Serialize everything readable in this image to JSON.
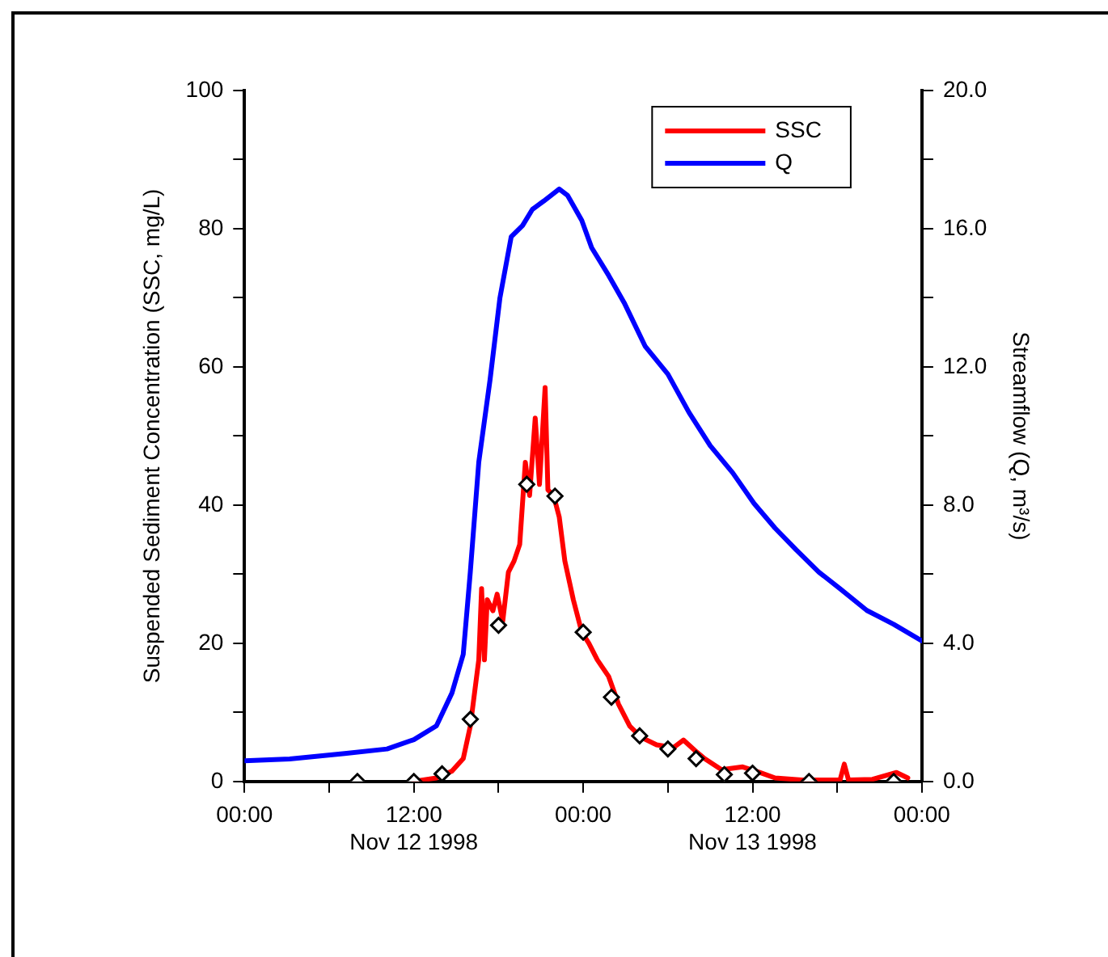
{
  "chart_data": {
    "type": "line",
    "ylabel": "Suspended Sediment Concentration (SSC, mg/L)",
    "y2label": "Streamflow (Q, m³/s)",
    "xlim": [
      "1998-11-12T00:00",
      "1998-11-14T00:00"
    ],
    "xticks": [
      {
        "value": "1998-11-12T00:00",
        "label": "00:00"
      },
      {
        "value": "1998-11-12T06:00",
        "label": null
      },
      {
        "value": "1998-11-12T12:00",
        "label": "12:00\nNov 12 1998"
      },
      {
        "value": "1998-11-12T18:00",
        "label": null
      },
      {
        "value": "1998-11-13T00:00",
        "label": "00:00"
      },
      {
        "value": "1998-11-13T06:00",
        "label": null
      },
      {
        "value": "1998-11-13T12:00",
        "label": "12:00\nNov 13 1998"
      },
      {
        "value": "1998-11-13T18:00",
        "label": null
      },
      {
        "value": "1998-11-14T00:00",
        "label": "00:00"
      }
    ],
    "ylim": [
      0,
      100
    ],
    "yticks": [
      0,
      {
        "value": 10,
        "label": null
      },
      20,
      {
        "value": 30,
        "label": null
      },
      40,
      {
        "value": 50,
        "label": null
      },
      60,
      {
        "value": 70,
        "label": null
      },
      80,
      {
        "value": 90,
        "label": null
      },
      100
    ],
    "y2lim": [
      0,
      20
    ],
    "y2ticks": [
      {
        "value": 0,
        "label": "0.0"
      },
      {
        "value": 2,
        "label": null
      },
      {
        "value": 4,
        "label": "4.0"
      },
      {
        "value": 6,
        "label": null
      },
      {
        "value": 8,
        "label": "8.0"
      },
      {
        "value": 10,
        "label": null
      },
      {
        "value": 12,
        "label": "12.0"
      },
      {
        "value": 14,
        "label": null
      },
      {
        "value": 16,
        "label": "16.0"
      },
      {
        "value": 18,
        "label": null
      },
      {
        "value": 20,
        "label": "20.0"
      }
    ],
    "grid": false,
    "legend": "top right",
    "series": [
      {
        "name": "SSC",
        "color": "#ff0000",
        "marker": "none",
        "x": [
          "1998-11-12T12:00",
          "1998-11-12T13:36",
          "1998-11-12T14:42",
          "1998-11-12T15:30",
          "1998-11-12T16:00",
          "1998-11-12T16:24",
          "1998-11-12T16:36",
          "1998-11-12T16:48",
          "1998-11-12T17:00",
          "1998-11-12T17:12",
          "1998-11-12T17:36",
          "1998-11-12T17:54",
          "1998-11-12T18:18",
          "1998-11-12T18:42",
          "1998-11-12T19:06",
          "1998-11-12T19:30",
          "1998-11-12T19:54",
          "1998-11-12T20:12",
          "1998-11-12T20:36",
          "1998-11-12T20:54",
          "1998-11-12T21:18",
          "1998-11-12T21:30",
          "1998-11-12T21:54",
          "1998-11-12T22:18",
          "1998-11-12T22:42",
          "1998-11-12T23:18",
          "1998-11-12T23:54",
          "1998-11-13T00:24",
          "1998-11-13T01:00",
          "1998-11-13T01:48",
          "1998-11-13T02:30",
          "1998-11-13T03:18",
          "1998-11-13T04:06",
          "1998-11-13T05:12",
          "1998-11-13T06:24",
          "1998-11-13T07:06",
          "1998-11-13T07:54",
          "1998-11-13T08:36",
          "1998-11-13T09:48",
          "1998-11-13T11:18",
          "1998-11-13T12:30",
          "1998-11-13T13:36",
          "1998-11-13T15:30",
          "1998-11-13T18:12",
          "1998-11-13T18:30",
          "1998-11-13T18:48",
          "1998-11-13T20:30",
          "1998-11-13T22:12",
          "1998-11-13T23:00"
        ],
        "values": [
          0,
          0.5,
          1.5,
          3.3,
          8.0,
          14.4,
          17.6,
          27.9,
          17.6,
          26.3,
          24.7,
          27.1,
          23.2,
          30.3,
          31.9,
          34.3,
          46.2,
          41.4,
          52.6,
          43.0,
          57.0,
          42.2,
          41.4,
          38.3,
          31.9,
          26.3,
          21.6,
          20.0,
          17.6,
          15.2,
          11.2,
          8.0,
          6.4,
          5.3,
          4.9,
          6.0,
          4.5,
          3.3,
          1.7,
          2.1,
          1.3,
          0.5,
          0.2,
          0.2,
          2.5,
          0.2,
          0.3,
          1.3,
          0.5
        ]
      },
      {
        "name": "Q",
        "axis": "y2",
        "color": "#0000ff",
        "marker": "none",
        "x": [
          "1998-11-12T00:00",
          "1998-11-12T03:12",
          "1998-11-12T07:06",
          "1998-11-12T10:06",
          "1998-11-12T12:00",
          "1998-11-12T13:36",
          "1998-11-12T14:42",
          "1998-11-12T15:30",
          "1998-11-12T16:00",
          "1998-11-12T16:36",
          "1998-11-12T17:24",
          "1998-11-12T18:06",
          "1998-11-12T18:54",
          "1998-11-12T19:42",
          "1998-11-12T20:24",
          "1998-11-12T21:12",
          "1998-11-12T22:18",
          "1998-11-12T22:54",
          "1998-11-12T23:54",
          "1998-11-13T00:36",
          "1998-11-13T01:48",
          "1998-11-13T02:54",
          "1998-11-13T04:24",
          "1998-11-13T06:00",
          "1998-11-13T07:30",
          "1998-11-13T09:00",
          "1998-11-13T10:36",
          "1998-11-13T12:06",
          "1998-11-13T13:36",
          "1998-11-13T15:06",
          "1998-11-13T16:42",
          "1998-11-13T18:12",
          "1998-11-13T20:06",
          "1998-11-13T22:00",
          "1998-11-14T00:00"
        ],
        "values": [
          0.6,
          0.65,
          0.81,
          0.94,
          1.21,
          1.61,
          2.56,
          3.68,
          6.06,
          9.24,
          11.63,
          14.0,
          15.77,
          16.09,
          16.56,
          16.8,
          17.15,
          16.96,
          16.24,
          15.45,
          14.65,
          13.86,
          12.59,
          11.79,
          10.68,
          9.72,
          8.93,
          8.05,
          7.33,
          6.7,
          6.06,
          5.58,
          4.95,
          4.55,
          4.07
        ]
      },
      {
        "type": "scatter",
        "color": "#000000",
        "marker": "diamond",
        "x": [
          "1998-11-12T08:00",
          "1998-11-12T12:00",
          "1998-11-12T14:00",
          "1998-11-12T16:00",
          "1998-11-12T18:00",
          "1998-11-12T20:00",
          "1998-11-12T22:00",
          "1998-11-13T00:00",
          "1998-11-13T02:00",
          "1998-11-13T04:00",
          "1998-11-13T06:00",
          "1998-11-13T08:00",
          "1998-11-13T10:00",
          "1998-11-13T12:00",
          "1998-11-13T16:00",
          "1998-11-13T22:00"
        ],
        "values": [
          0,
          0,
          1.1,
          9.0,
          22.6,
          43.0,
          41.3,
          21.6,
          12.2,
          6.6,
          4.7,
          3.3,
          1.0,
          1.2,
          0,
          0
        ]
      }
    ]
  }
}
